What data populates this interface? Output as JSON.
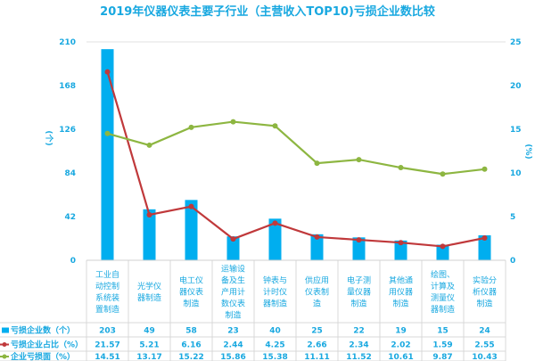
{
  "chart_data": {
    "type": "bar",
    "title": "2019年仪器仪表主要子行业（主营收入TOP10)亏损企业数比较",
    "ylabel": "(个)",
    "y2label": "(%)",
    "ylim": [
      0,
      210
    ],
    "y2lim": [
      0,
      25
    ],
    "yticks": [
      "0",
      "42",
      "84",
      "126",
      "168",
      "210"
    ],
    "y2ticks": [
      "0",
      "5",
      "10",
      "15",
      "20",
      "25"
    ],
    "categories": [
      "工业自动控制系统装置制造",
      "光学仪器制造",
      "电工仪器仪表制造",
      "运输设备及生产用计数仪表制造",
      "钟表与计时仪器制造",
      "供应用仪表制造",
      "电子测量仪器制造",
      "其他通用仪器制造",
      "绘图、计算及测量仪器制造",
      "实验分析仪器制造"
    ],
    "category_lines": [
      [
        "工业自",
        "动控制",
        "系统装",
        "置制造"
      ],
      [
        "光学仪",
        "器制造"
      ],
      [
        "电工仪",
        "器仪表",
        "制造"
      ],
      [
        "运输设",
        "备及生",
        "产用计",
        "数仪表",
        "制造"
      ],
      [
        "钟表与",
        "计时仪",
        "器制造"
      ],
      [
        "供应用",
        "仪表制",
        "造"
      ],
      [
        "电子测",
        "量仪器",
        "制造"
      ],
      [
        "其他通",
        "用仪器",
        "制造"
      ],
      [
        "绘图、",
        "计算及",
        "测量仪",
        "器制造"
      ],
      [
        "实验分",
        "析仪器",
        "制造"
      ]
    ],
    "series": [
      {
        "name": "亏损企业数（个）",
        "type": "bar",
        "axis": "left",
        "color": "#00aeef",
        "values": [
          203,
          49,
          58,
          23,
          40,
          25,
          22,
          19,
          15,
          24
        ],
        "labels": [
          "203",
          "49",
          "58",
          "23",
          "40",
          "25",
          "22",
          "19",
          "15",
          "24"
        ]
      },
      {
        "name": "亏损企业占比（%）",
        "type": "line",
        "axis": "right",
        "color": "#c0393b",
        "values": [
          21.57,
          5.21,
          6.16,
          2.44,
          4.25,
          2.66,
          2.34,
          2.02,
          1.59,
          2.55
        ],
        "labels": [
          "21.57",
          "5.21",
          "6.16",
          "2.44",
          "4.25",
          "2.66",
          "2.34",
          "2.02",
          "1.59",
          "2.55"
        ]
      },
      {
        "name": "企业亏损面（%）",
        "type": "line",
        "axis": "right",
        "color": "#8db641",
        "values": [
          14.51,
          13.17,
          15.22,
          15.86,
          15.38,
          11.11,
          11.52,
          10.61,
          9.87,
          10.43
        ],
        "labels": [
          "14.51",
          "13.17",
          "15.22",
          "15.86",
          "15.38",
          "11.11",
          "11.52",
          "10.61",
          "9.87",
          "10.43"
        ]
      }
    ],
    "legend": "table-left"
  }
}
